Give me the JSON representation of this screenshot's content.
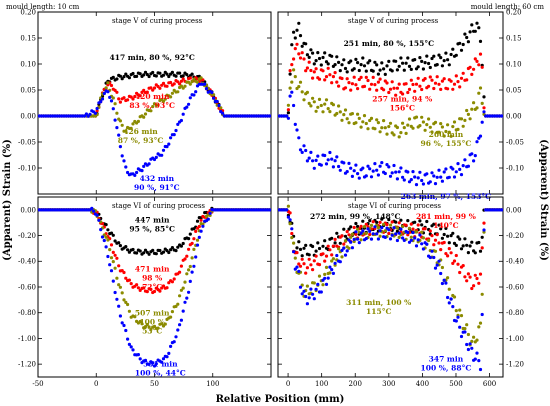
{
  "figure": {
    "left_header": "mould length: 10 cm",
    "right_header": "mould length: 60 cm",
    "xlabel": "Relative Position (mm)",
    "ylabel_left": "(Apparent) Strain (%)",
    "ylabel_right": "(Apparent) Strain (%)"
  },
  "colors": {
    "black": "#000000",
    "red": "#ff0000",
    "olive": "#8b8b00",
    "blue": "#0000ff"
  },
  "chart_data": [
    {
      "type": "scatter",
      "title": "stage V of curing process",
      "xlim": [
        -50,
        150
      ],
      "ylim": [
        -0.15,
        0.2
      ],
      "xticks": [
        "-50",
        "0",
        "50",
        "100"
      ],
      "yticks": [
        "0.20",
        "0.15",
        "0.10",
        "0.05",
        "0.00",
        "-0.05",
        "-0.10"
      ],
      "series": [
        {
          "name": "417 min, 80 %, 92°C",
          "color": "#000000",
          "label_lines": [
            "417 min, 80 %, 92°C"
          ],
          "x": [
            -50,
            0,
            5,
            10,
            20,
            30,
            40,
            50,
            60,
            70,
            80,
            90,
            100,
            110,
            150
          ],
          "y": [
            0,
            0,
            0.04,
            0.068,
            0.075,
            0.078,
            0.08,
            0.08,
            0.08,
            0.08,
            0.078,
            0.072,
            0.04,
            0,
            0
          ]
        },
        {
          "name": "420 min 83 %, 93°C",
          "color": "#ff0000",
          "label_lines": [
            "420 min",
            "83 %, 93°C"
          ],
          "x": [
            -50,
            0,
            5,
            10,
            15,
            20,
            30,
            40,
            50,
            60,
            70,
            80,
            90,
            100,
            110,
            150
          ],
          "y": [
            0,
            0,
            0.04,
            0.062,
            0.055,
            0.03,
            0.035,
            0.045,
            0.055,
            0.06,
            0.065,
            0.07,
            0.07,
            0.04,
            0,
            0
          ]
        },
        {
          "name": "426 min 87 %, 93°C",
          "color": "#8b8b00",
          "label_lines": [
            "426 min",
            "87 %, 93°C"
          ],
          "x": [
            -50,
            0,
            5,
            10,
            15,
            20,
            25,
            30,
            40,
            50,
            60,
            70,
            80,
            90,
            100,
            110,
            150
          ],
          "y": [
            0,
            0,
            0.04,
            0.06,
            0.03,
            -0.01,
            -0.03,
            -0.02,
            0,
            0.02,
            0.035,
            0.05,
            0.065,
            0.07,
            0.04,
            0,
            0
          ]
        },
        {
          "name": "432 min 90 %, 91°C",
          "color": "#0000ff",
          "label_lines": [
            "432 min",
            "90 %, 91°C"
          ],
          "x": [
            -50,
            -10,
            0,
            5,
            10,
            15,
            20,
            25,
            30,
            40,
            50,
            55,
            60,
            70,
            80,
            90,
            100,
            110,
            150
          ],
          "y": [
            0,
            0,
            0.01,
            0.035,
            0.05,
            0.01,
            -0.05,
            -0.1,
            -0.115,
            -0.1,
            -0.08,
            -0.075,
            -0.06,
            -0.02,
            0.03,
            0.065,
            0.04,
            0,
            0
          ]
        }
      ]
    },
    {
      "type": "scatter",
      "title": "stage V of curing process",
      "xlim": [
        -30,
        640
      ],
      "ylim": [
        -0.15,
        0.2
      ],
      "xticks": [
        "0",
        "100",
        "200",
        "300",
        "400",
        "500",
        "600"
      ],
      "yticks": [
        "0.20",
        "0.15",
        "0.10",
        "0.05",
        "0.00",
        "-0.05",
        "-0.10"
      ],
      "series": [
        {
          "name": "251 min, 80 %, 155°C",
          "color": "#000000",
          "label_lines": [
            "251 min, 80 %, 155°C"
          ],
          "x": [
            -30,
            0,
            5,
            15,
            30,
            50,
            80,
            120,
            170,
            220,
            280,
            330,
            380,
            430,
            480,
            520,
            560,
            575,
            585,
            640
          ],
          "y": [
            0,
            0,
            0.08,
            0.155,
            0.17,
            0.13,
            0.11,
            0.11,
            0.095,
            0.1,
            0.09,
            0.1,
            0.1,
            0.105,
            0.11,
            0.14,
            0.175,
            0.15,
            0,
            0
          ]
        },
        {
          "name": "257 min, 94 % 156°C",
          "color": "#ff0000",
          "label_lines": [
            "257 min, 94 %",
            "156°C"
          ],
          "x": [
            -30,
            0,
            5,
            15,
            30,
            50,
            80,
            120,
            170,
            220,
            280,
            330,
            380,
            430,
            480,
            520,
            560,
            575,
            585,
            640
          ],
          "y": [
            0,
            0,
            0.07,
            0.12,
            0.13,
            0.1,
            0.08,
            0.08,
            0.06,
            0.065,
            0.06,
            0.05,
            0.06,
            0.065,
            0.06,
            0.07,
            0.1,
            0.12,
            0,
            0
          ]
        },
        {
          "name": "260 min 96 %, 155°C",
          "color": "#8b8b00",
          "label_lines": [
            "260 min",
            "96 %, 155°C"
          ],
          "x": [
            -30,
            0,
            5,
            15,
            30,
            50,
            80,
            120,
            170,
            220,
            280,
            330,
            380,
            430,
            480,
            520,
            560,
            575,
            585,
            640
          ],
          "y": [
            0,
            0,
            0.06,
            0.08,
            0.06,
            0.04,
            0.02,
            0.02,
            0,
            -0.01,
            -0.02,
            -0.03,
            -0.01,
            -0.02,
            -0.03,
            -0.01,
            0.02,
            0.05,
            0,
            0
          ]
        },
        {
          "name": "263 min, 97 %, 153°C",
          "color": "#0000ff",
          "label_lines": [
            "263 min, 97 %, 153°C"
          ],
          "x": [
            -30,
            0,
            5,
            15,
            30,
            50,
            80,
            120,
            170,
            220,
            280,
            330,
            380,
            430,
            480,
            520,
            560,
            575,
            585,
            640
          ],
          "y": [
            0,
            0,
            0.04,
            0.03,
            -0.05,
            -0.07,
            -0.09,
            -0.08,
            -0.1,
            -0.11,
            -0.1,
            -0.11,
            -0.12,
            -0.12,
            -0.11,
            -0.1,
            -0.07,
            -0.02,
            0,
            0
          ]
        }
      ]
    },
    {
      "type": "scatter",
      "title": "stage VI of curing process",
      "xlim": [
        -50,
        150
      ],
      "ylim": [
        -1.3,
        0.1
      ],
      "xticks": [
        "-50",
        "0",
        "50",
        "100"
      ],
      "yticks": [
        "0.00",
        "-0.20",
        "-0.40",
        "-0.60",
        "-0.80",
        "-1.00",
        "-1.20"
      ],
      "series": [
        {
          "name": "447 min 95 %, 85°C",
          "color": "#000000",
          "label_lines": [
            "447 min",
            "95 %, 85°C"
          ],
          "x": [
            -50,
            -5,
            0,
            10,
            20,
            30,
            40,
            50,
            60,
            70,
            80,
            90,
            100,
            150
          ],
          "y": [
            0,
            0,
            -0.02,
            -0.15,
            -0.28,
            -0.32,
            -0.33,
            -0.33,
            -0.32,
            -0.3,
            -0.2,
            -0.05,
            0,
            0
          ]
        },
        {
          "name": "471 min 98 % 72°C",
          "color": "#ff0000",
          "label_lines": [
            "471 min",
            "98 %",
            "72°C"
          ],
          "x": [
            -50,
            -5,
            0,
            10,
            20,
            30,
            40,
            50,
            60,
            70,
            80,
            90,
            100,
            150
          ],
          "y": [
            0,
            0,
            -0.02,
            -0.2,
            -0.45,
            -0.58,
            -0.62,
            -0.63,
            -0.6,
            -0.5,
            -0.3,
            -0.08,
            0,
            0
          ]
        },
        {
          "name": "507 min 100 % 53°C",
          "color": "#8b8b00",
          "label_lines": [
            "507 min",
            "100 %",
            "53°C"
          ],
          "x": [
            -50,
            -5,
            0,
            10,
            20,
            30,
            40,
            50,
            60,
            70,
            80,
            90,
            100,
            150
          ],
          "y": [
            0,
            0,
            -0.02,
            -0.25,
            -0.6,
            -0.82,
            -0.9,
            -0.92,
            -0.88,
            -0.72,
            -0.45,
            -0.12,
            0,
            0
          ]
        },
        {
          "name": "531 min 100 %, 44°C",
          "color": "#0000ff",
          "label_lines": [
            "531 min",
            "100 %, 44°C"
          ],
          "x": [
            -50,
            -5,
            0,
            10,
            20,
            30,
            40,
            50,
            60,
            70,
            80,
            90,
            100,
            150
          ],
          "y": [
            0,
            0,
            -0.02,
            -0.35,
            -0.8,
            -1.08,
            -1.18,
            -1.2,
            -1.15,
            -0.95,
            -0.6,
            -0.15,
            0,
            0
          ]
        }
      ]
    },
    {
      "type": "scatter",
      "title": "stage VI of curing process",
      "xlim": [
        -30,
        640
      ],
      "ylim": [
        -1.3,
        0.1
      ],
      "xticks": [
        "0",
        "100",
        "200",
        "300",
        "400",
        "500",
        "600"
      ],
      "yticks": [
        "0.00",
        "-0.20",
        "-0.40",
        "-0.60",
        "-0.80",
        "-1.00",
        "-1.20"
      ],
      "series": [
        {
          "name": "272 min, 99 %, 148°C",
          "color": "#000000",
          "label_lines": [
            "272 min, 99 %, 148°C"
          ],
          "x": [
            -30,
            0,
            5,
            20,
            50,
            100,
            150,
            200,
            250,
            300,
            350,
            400,
            450,
            500,
            550,
            575,
            585,
            640
          ],
          "y": [
            0,
            0,
            -0.05,
            -0.28,
            -0.32,
            -0.3,
            -0.22,
            -0.15,
            -0.12,
            -0.12,
            -0.13,
            -0.13,
            -0.16,
            -0.24,
            -0.3,
            -0.28,
            0,
            0
          ]
        },
        {
          "name": "281 min, 99 % 140°C",
          "color": "#ff0000",
          "label_lines": [
            "281 min, 99 %",
            "140°C"
          ],
          "x": [
            -30,
            0,
            5,
            20,
            50,
            100,
            150,
            200,
            250,
            300,
            350,
            400,
            450,
            500,
            550,
            575,
            585,
            640
          ],
          "y": [
            0,
            0,
            -0.05,
            -0.35,
            -0.45,
            -0.38,
            -0.25,
            -0.18,
            -0.14,
            -0.14,
            -0.15,
            -0.17,
            -0.25,
            -0.4,
            -0.58,
            -0.5,
            0,
            0
          ]
        },
        {
          "name": "311 min, 100 % 115°C",
          "color": "#8b8b00",
          "label_lines": [
            "311 min, 100 %",
            "115°C"
          ],
          "x": [
            -30,
            0,
            5,
            20,
            50,
            100,
            150,
            200,
            250,
            300,
            350,
            400,
            450,
            500,
            550,
            575,
            585,
            640
          ],
          "y": [
            0,
            0,
            -0.05,
            -0.38,
            -0.65,
            -0.55,
            -0.35,
            -0.2,
            -0.16,
            -0.16,
            -0.18,
            -0.22,
            -0.4,
            -0.75,
            -1.05,
            -0.9,
            0,
            0
          ]
        },
        {
          "name": "347 min 100 %, 88°C",
          "color": "#0000ff",
          "label_lines": [
            "347 min",
            "100 %, 88°C"
          ],
          "x": [
            -30,
            0,
            5,
            20,
            50,
            100,
            150,
            200,
            250,
            300,
            350,
            400,
            450,
            500,
            550,
            575,
            585,
            640
          ],
          "y": [
            0,
            0,
            -0.05,
            -0.4,
            -0.7,
            -0.6,
            -0.38,
            -0.22,
            -0.18,
            -0.18,
            -0.2,
            -0.25,
            -0.45,
            -0.85,
            -1.12,
            -1.2,
            0,
            0
          ]
        }
      ]
    }
  ]
}
